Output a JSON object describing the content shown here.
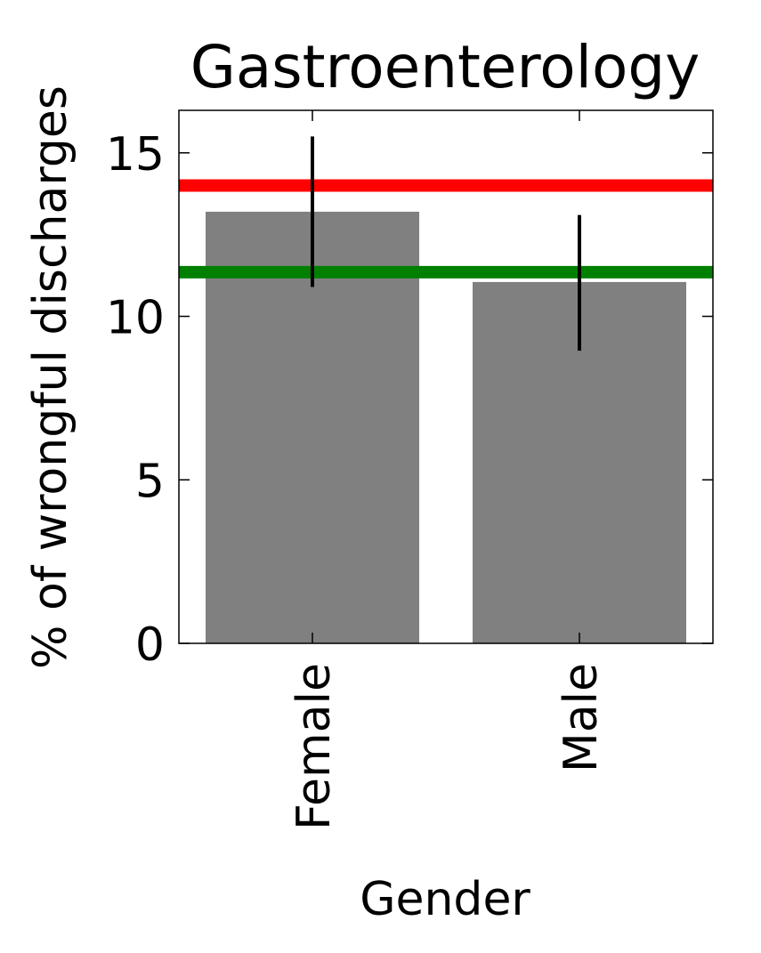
{
  "chart_data": {
    "type": "bar",
    "title": "Gastroenterology",
    "xlabel": "Gender",
    "ylabel": "% of wrongful discharges",
    "categories": [
      "Female",
      "Male"
    ],
    "values": [
      13.2,
      11.05
    ],
    "error_bars": [
      {
        "low": 10.9,
        "high": 15.5
      },
      {
        "low": 8.95,
        "high": 13.1
      }
    ],
    "reference_lines": [
      {
        "value": 14.0,
        "color": "#ff0000"
      },
      {
        "value": 11.35,
        "color": "#008000"
      }
    ],
    "ylim": [
      0,
      16.3
    ],
    "yticks": [
      0,
      5,
      10,
      15
    ],
    "grid": false,
    "legend": "none",
    "colors": {
      "bar": "#808080",
      "error_bar": "#000000",
      "axes": "#000000"
    }
  }
}
